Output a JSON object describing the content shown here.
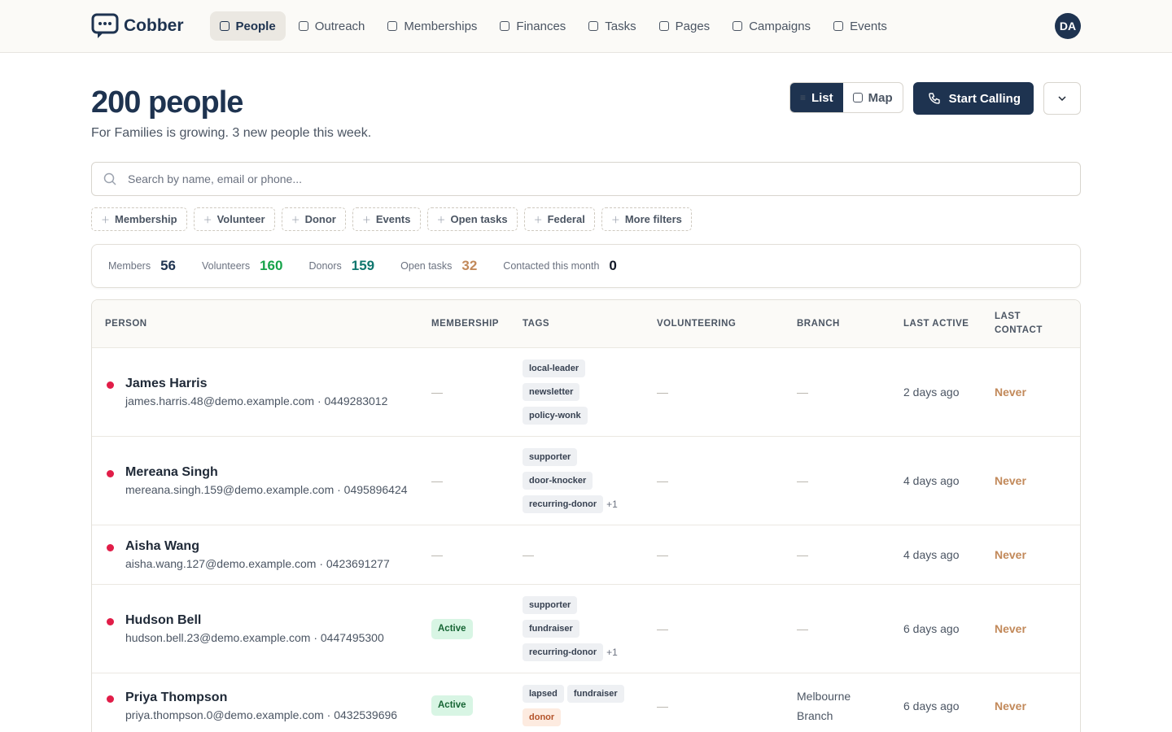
{
  "nav": {
    "brand": "Cobber",
    "items": [
      "People",
      "Outreach",
      "Memberships",
      "Finances",
      "Tasks",
      "Pages",
      "Campaigns",
      "Events"
    ],
    "active": 0,
    "avatar": "DA"
  },
  "header": {
    "title": "200 people",
    "subtitle": "For Families is growing. 3 new people this week.",
    "views": [
      "List",
      "Map"
    ],
    "cta": "Start Calling"
  },
  "search": {
    "placeholder": "Search by name, email or phone..."
  },
  "filters": [
    "Membership",
    "Volunteer",
    "Donor",
    "Events",
    "Open tasks",
    "Federal",
    "More filters"
  ],
  "stats": [
    {
      "label": "Members",
      "value": "56",
      "color": "#1e3350"
    },
    {
      "label": "Volunteers",
      "value": "160",
      "color": "#16a34a"
    },
    {
      "label": "Donors",
      "value": "159",
      "color": "#0f766e"
    },
    {
      "label": "Open tasks",
      "value": "32",
      "color": "#c2895a"
    },
    {
      "label": "Contacted this month",
      "value": "0",
      "color": "#111827"
    }
  ],
  "table": {
    "columns": [
      "PERSON",
      "MEMBERSHIP",
      "TAGS",
      "VOLUNTEERING",
      "BRANCH",
      "LAST ACTIVE",
      "LAST CONTACT"
    ],
    "rows": [
      {
        "name": "James Harris",
        "contact": "james.harris.48@demo.example.com · 0449283012",
        "membership": "—",
        "tags": [
          "local-leader",
          "newsletter",
          "policy-wonk"
        ],
        "volunteering": "—",
        "branch": "—",
        "last_active": "2 days ago",
        "last_contact": "Never"
      },
      {
        "name": "Mereana Singh",
        "contact": "mereana.singh.159@demo.example.com · 0495896424",
        "membership": "—",
        "tags": [
          "supporter",
          "door-knocker",
          "recurring-donor"
        ],
        "more": "+1",
        "volunteering": "—",
        "branch": "—",
        "last_active": "4 days ago",
        "last_contact": "Never"
      },
      {
        "name": "Aisha Wang",
        "contact": "aisha.wang.127@demo.example.com · 0423691277",
        "membership": "—",
        "tags": "—",
        "volunteering": "—",
        "branch": "—",
        "last_active": "4 days ago",
        "last_contact": "Never"
      },
      {
        "name": "Hudson Bell",
        "contact": "hudson.bell.23@demo.example.com · 0447495300",
        "membership": "Active",
        "tags": [
          "supporter",
          "fundraiser",
          "recurring-donor"
        ],
        "more": "+1",
        "volunteering": "—",
        "branch": "—",
        "last_active": "6 days ago",
        "last_contact": "Never"
      },
      {
        "name": "Priya Thompson",
        "contact": "priya.thompson.0@demo.example.com · 0432539696",
        "membership": "Active",
        "tags": [
          "lapsed",
          "fundraiser",
          {
            "label": "donor",
            "color": "#fdebe0"
          }
        ],
        "volunteering": "—",
        "branch": "Melbourne Branch",
        "last_active": "6 days ago",
        "last_contact": "Never"
      }
    ]
  }
}
